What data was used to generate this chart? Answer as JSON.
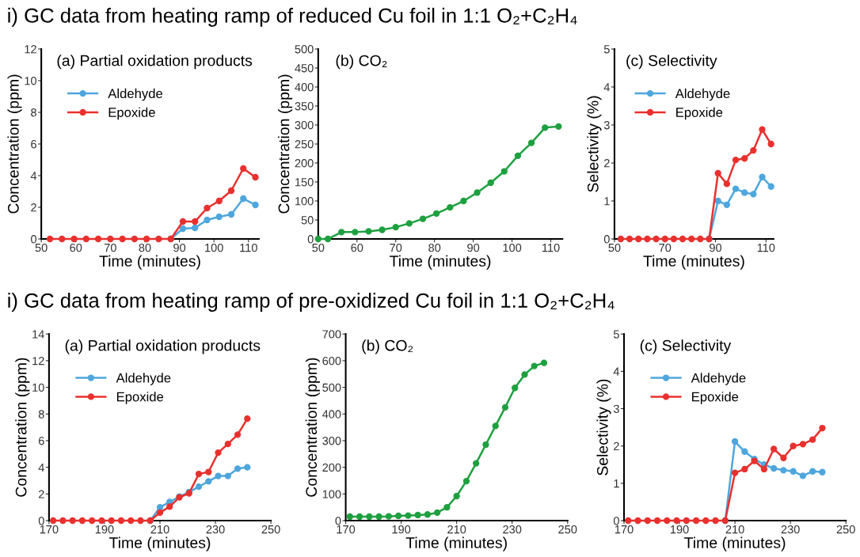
{
  "chart_data": [
    {
      "type": "line",
      "title": "(a) Partial oxidation products",
      "annotations": [
        "i) GC data from heating ramp of reduced Cu foil in 1:1 O₂+C₂H₄"
      ],
      "xlabel": "Time (minutes)",
      "ylabel": "Concentration (ppm)",
      "marker": "circle",
      "line_style": "solid",
      "legend": "top left",
      "x": [
        52.5,
        56,
        59.5,
        63,
        66.5,
        70,
        73.5,
        77,
        80.5,
        84,
        87.5,
        91,
        94.5,
        98,
        101.5,
        105,
        108.5,
        112
      ],
      "xlim": [
        50,
        113
      ],
      "xticks": [
        50,
        60,
        70,
        80,
        90,
        100,
        110
      ],
      "ylim": [
        0,
        12
      ],
      "yticks": [
        0,
        2,
        4,
        6,
        8,
        10,
        12
      ],
      "series": [
        {
          "name": "Aldehyde",
          "color": "#4ea6dc",
          "values": [
            null,
            null,
            null,
            null,
            null,
            null,
            null,
            null,
            null,
            null,
            0,
            0.65,
            0.7,
            1.2,
            1.4,
            1.55,
            2.55,
            2.15
          ]
        },
        {
          "name": "Epoxide",
          "color": "#e8312f",
          "values": [
            0,
            0,
            0,
            0,
            0,
            0,
            0,
            0,
            0,
            0,
            0,
            1.1,
            1.1,
            1.95,
            2.4,
            3.05,
            4.45,
            3.9
          ]
        }
      ]
    },
    {
      "type": "line",
      "title": "(b) CO₂",
      "xlabel": "Time (minutes)",
      "ylabel": "Concentration (ppm)",
      "marker": "circle",
      "line_style": "solid",
      "x": [
        50,
        52.5,
        56,
        59.5,
        63,
        66.5,
        70,
        73.5,
        77,
        80.5,
        84,
        87.5,
        91,
        94.5,
        98,
        101.5,
        105,
        108.5,
        112
      ],
      "xlim": [
        50,
        113
      ],
      "xticks": [
        50,
        60,
        70,
        80,
        90,
        100,
        110
      ],
      "ylim": [
        0,
        500
      ],
      "yticks": [
        0,
        50,
        100,
        150,
        200,
        250,
        300,
        350,
        400,
        450,
        500
      ],
      "series": [
        {
          "color": "#1fa040",
          "values": [
            0,
            0,
            18,
            18,
            20,
            24,
            31,
            41,
            53,
            67,
            83,
            100,
            122,
            148,
            178,
            219,
            253,
            293,
            296
          ]
        }
      ]
    },
    {
      "type": "line",
      "title": "(c) Selectivity",
      "xlabel": "Time (minutes)",
      "ylabel": "Selectivity (%)",
      "marker": "circle",
      "line_style": "solid",
      "legend": "top left",
      "x": [
        52.5,
        56,
        59.5,
        63,
        66.5,
        70,
        73.5,
        77,
        80.5,
        84,
        87.5,
        91,
        94.5,
        98,
        101.5,
        105,
        108.5,
        112
      ],
      "xlim": [
        50,
        113
      ],
      "xticks": [
        50,
        70,
        90,
        110
      ],
      "ylim": [
        0,
        5
      ],
      "yticks": [
        0,
        1,
        2,
        3,
        4,
        5
      ],
      "series": [
        {
          "name": "Aldehyde",
          "color": "#4ea6dc",
          "values": [
            null,
            null,
            null,
            null,
            null,
            null,
            null,
            null,
            null,
            null,
            0,
            1.0,
            0.9,
            1.32,
            1.22,
            1.18,
            1.63,
            1.38
          ]
        },
        {
          "name": "Epoxide",
          "color": "#e8312f",
          "values": [
            0,
            0,
            0,
            0,
            0,
            0,
            0,
            0,
            0,
            0,
            0,
            1.73,
            1.45,
            2.08,
            2.12,
            2.33,
            2.88,
            2.5
          ]
        }
      ]
    },
    {
      "type": "line",
      "title": "(a) Partial oxidation products",
      "annotations": [
        "i) GC data from heating ramp of pre-oxidized Cu foil in 1:1 O₂+C₂H₄"
      ],
      "xlabel": "Time (minutes)",
      "ylabel": "Concentration (ppm)",
      "marker": "circle",
      "line_style": "solid",
      "legend": "top left",
      "x": [
        171.5,
        175,
        178.5,
        182,
        185.5,
        189,
        192.5,
        196,
        199.5,
        203,
        206.5,
        210,
        213.5,
        217,
        220.5,
        224,
        227.5,
        231,
        234.5,
        238,
        241.5
      ],
      "xlim": [
        170,
        250
      ],
      "xticks": [
        170,
        190,
        210,
        230,
        250
      ],
      "ylim": [
        0,
        14
      ],
      "yticks": [
        0,
        2,
        4,
        6,
        8,
        10,
        12,
        14
      ],
      "series": [
        {
          "name": "Aldehyde",
          "color": "#4ea6dc",
          "values": [
            null,
            null,
            null,
            null,
            null,
            null,
            null,
            null,
            null,
            null,
            0,
            1.0,
            1.4,
            1.8,
            2.15,
            2.55,
            2.95,
            3.35,
            3.35,
            3.9,
            4.0
          ]
        },
        {
          "name": "Epoxide",
          "color": "#e8312f",
          "values": [
            0,
            0,
            0,
            0,
            0,
            0,
            0,
            0,
            0,
            0,
            0,
            0.6,
            1.05,
            1.75,
            2.05,
            3.5,
            3.65,
            5.1,
            5.75,
            6.45,
            7.65
          ]
        }
      ]
    },
    {
      "type": "line",
      "title": "(b) CO₂",
      "xlabel": "Time (minutes)",
      "ylabel": "Concentration (ppm)",
      "marker": "circle",
      "line_style": "solid",
      "x": [
        171.5,
        175,
        178.5,
        182,
        185.5,
        189,
        192.5,
        196,
        199.5,
        203,
        206.5,
        210,
        213.5,
        217,
        220.5,
        224,
        227.5,
        231,
        234.5,
        238,
        241.5
      ],
      "xlim": [
        170,
        250
      ],
      "xticks": [
        170,
        190,
        210,
        230,
        250
      ],
      "ylim": [
        0,
        700
      ],
      "yticks": [
        0,
        100,
        200,
        300,
        400,
        500,
        600,
        700
      ],
      "series": [
        {
          "color": "#1fa040",
          "values": [
            15,
            15,
            15,
            15,
            16,
            18,
            19,
            21,
            23,
            30,
            50,
            92,
            148,
            215,
            285,
            355,
            425,
            498,
            548,
            580,
            592
          ]
        }
      ]
    },
    {
      "type": "line",
      "title": "(c) Selectivity",
      "xlabel": "Time (minutes)",
      "ylabel": "Selectivity (%)",
      "marker": "circle",
      "line_style": "solid",
      "legend": "top left",
      "x": [
        171.5,
        175,
        178.5,
        182,
        185.5,
        189,
        192.5,
        196,
        199.5,
        203,
        206.5,
        210,
        213.5,
        217,
        220.5,
        224,
        227.5,
        231,
        234.5,
        238,
        241.5
      ],
      "xlim": [
        170,
        250
      ],
      "xticks": [
        170,
        190,
        210,
        230,
        250
      ],
      "ylim": [
        0,
        5
      ],
      "yticks": [
        0,
        1,
        2,
        3,
        4,
        5
      ],
      "series": [
        {
          "name": "Aldehyde",
          "color": "#4ea6dc",
          "values": [
            null,
            null,
            null,
            null,
            null,
            null,
            null,
            null,
            null,
            null,
            0,
            2.12,
            1.85,
            1.65,
            1.5,
            1.4,
            1.35,
            1.32,
            1.2,
            1.32,
            1.3
          ]
        },
        {
          "name": "Epoxide",
          "color": "#e8312f",
          "values": [
            0,
            0,
            0,
            0,
            0,
            0,
            0,
            0,
            0,
            0,
            0,
            1.28,
            1.38,
            1.6,
            1.38,
            1.92,
            1.68,
            2.0,
            2.05,
            2.17,
            2.48
          ]
        }
      ]
    }
  ]
}
